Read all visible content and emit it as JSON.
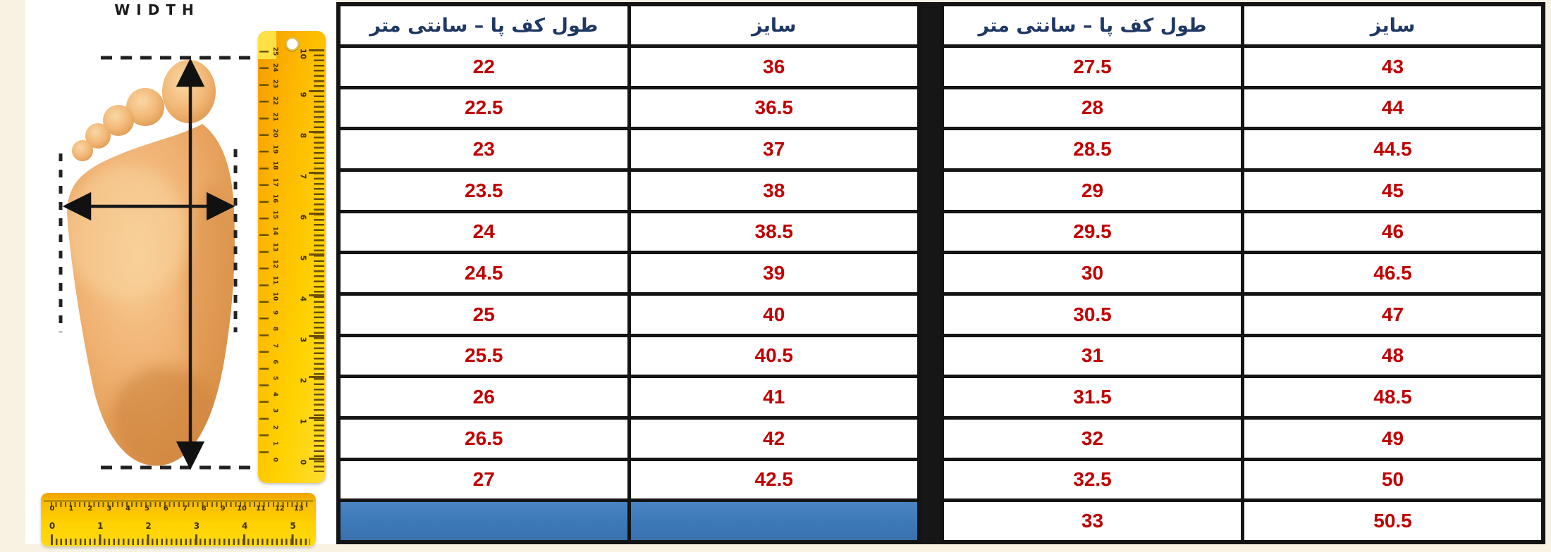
{
  "illustration": {
    "width_label": "WIDTH",
    "vertical_ruler": {
      "cm_labels": [
        "25",
        "24",
        "23",
        "22",
        "21",
        "20",
        "19",
        "18",
        "17",
        "16",
        "15",
        "14",
        "13",
        "12",
        "11",
        "10",
        "9",
        "8",
        "7",
        "6",
        "5",
        "4",
        "3",
        "2",
        "1",
        "0"
      ],
      "inch_labels": [
        "10",
        "9",
        "8",
        "7",
        "6",
        "5",
        "4",
        "3",
        "2",
        "1",
        "0"
      ]
    },
    "horizontal_ruler": {
      "cm_labels": [
        "0",
        "1",
        "2",
        "3",
        "4",
        "5",
        "6",
        "7",
        "8",
        "9",
        "10",
        "11",
        "12",
        "13"
      ],
      "inch_labels": [
        "0",
        "1",
        "2",
        "3",
        "4",
        "5"
      ]
    }
  },
  "tables": [
    {
      "id": "left",
      "headers": {
        "length": "طول کف پا – سانتی متر",
        "size": "سایز"
      },
      "rows": [
        {
          "length": "22",
          "size": "36"
        },
        {
          "length": "22.5",
          "size": "36.5"
        },
        {
          "length": "23",
          "size": "37"
        },
        {
          "length": "23.5",
          "size": "38"
        },
        {
          "length": "24",
          "size": "38.5"
        },
        {
          "length": "24.5",
          "size": "39"
        },
        {
          "length": "25",
          "size": "40"
        },
        {
          "length": "25.5",
          "size": "40.5"
        },
        {
          "length": "26",
          "size": "41"
        },
        {
          "length": "26.5",
          "size": "42"
        },
        {
          "length": "27",
          "size": "42.5"
        },
        {
          "length": "",
          "size": "",
          "highlight": true
        }
      ]
    },
    {
      "id": "right",
      "headers": {
        "length": "طول کف پا – سانتی متر",
        "size": "سایز"
      },
      "rows": [
        {
          "length": "27.5",
          "size": "43"
        },
        {
          "length": "28",
          "size": "44"
        },
        {
          "length": "28.5",
          "size": "44.5"
        },
        {
          "length": "29",
          "size": "45"
        },
        {
          "length": "29.5",
          "size": "46"
        },
        {
          "length": "30",
          "size": "46.5"
        },
        {
          "length": "30.5",
          "size": "47"
        },
        {
          "length": "31",
          "size": "48"
        },
        {
          "length": "31.5",
          "size": "48.5"
        },
        {
          "length": "32",
          "size": "49"
        },
        {
          "length": "32.5",
          "size": "50"
        },
        {
          "length": "33",
          "size": "50.5"
        }
      ]
    }
  ],
  "chart_data": {
    "type": "table",
    "tables": [
      {
        "columns": [
          "طول کف پا – سانتی متر",
          "سایز"
        ],
        "rows": [
          [
            "22",
            "36"
          ],
          [
            "22.5",
            "36.5"
          ],
          [
            "23",
            "37"
          ],
          [
            "23.5",
            "38"
          ],
          [
            "24",
            "38.5"
          ],
          [
            "24.5",
            "39"
          ],
          [
            "25",
            "40"
          ],
          [
            "25.5",
            "40.5"
          ],
          [
            "26",
            "41"
          ],
          [
            "26.5",
            "42"
          ],
          [
            "27",
            "42.5"
          ],
          [
            "",
            ""
          ]
        ]
      },
      {
        "columns": [
          "طول کف پا – سانتی متر",
          "سایز"
        ],
        "rows": [
          [
            "27.5",
            "43"
          ],
          [
            "28",
            "44"
          ],
          [
            "28.5",
            "44.5"
          ],
          [
            "29",
            "45"
          ],
          [
            "29.5",
            "46"
          ],
          [
            "30",
            "46.5"
          ],
          [
            "30.5",
            "47"
          ],
          [
            "31",
            "48"
          ],
          [
            "31.5",
            "48.5"
          ],
          [
            "32",
            "49"
          ],
          [
            "32.5",
            "50"
          ],
          [
            "33",
            "50.5"
          ]
        ]
      }
    ]
  },
  "colors": {
    "header_text": "#1f3864",
    "value_text": "#c00000",
    "table_border": "#141414",
    "highlight_row": "#3d79b7",
    "page_background": "#f8f2e2",
    "ruler_yellow": "#ffd200",
    "ruler_orange": "#f59b00",
    "foot_tan": "#f0b273"
  }
}
